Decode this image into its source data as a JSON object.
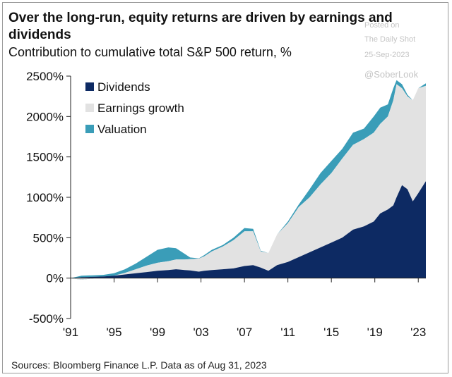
{
  "title": "Over the long-run, equity returns are driven by earnings and dividends",
  "subtitle": "Contribution to cumulative total S&P 500 return, %",
  "source": "Sources: Bloomberg  Finance L.P. Data as of Aug 31, 2023",
  "watermark": {
    "posted": "Posted on",
    "site": "The Daily Shot",
    "date": "25-Sep-2023",
    "handle": "@SoberLook"
  },
  "colors": {
    "dividends": "#0d2a63",
    "earnings": "#e2e2e2",
    "valuation": "#3a9db8",
    "axis": "#222222"
  },
  "chart_data": {
    "type": "area",
    "stacked": true,
    "x_tick_labels": [
      "'91",
      "'95",
      "'99",
      "'03",
      "'07",
      "'11",
      "'15",
      "'19",
      "'23"
    ],
    "x_tick_years": [
      1991,
      1995,
      1999,
      2003,
      2007,
      2011,
      2015,
      2019,
      2023
    ],
    "y_tick_labels": [
      "2500%",
      "2000%",
      "1500%",
      "1000%",
      "500%",
      "0%",
      "-500%"
    ],
    "y_tick_values": [
      2500,
      2000,
      1500,
      1000,
      500,
      0,
      -500
    ],
    "ylim": [
      -500,
      2500
    ],
    "xlim": [
      1991,
      2023.7
    ],
    "legend_position": "top-left",
    "x": [
      1991.0,
      1992.0,
      1993.0,
      1994.0,
      1995.0,
      1996.0,
      1997.0,
      1998.0,
      1999.0,
      2000.0,
      2000.7,
      2001.5,
      2002.0,
      2002.8,
      2003.3,
      2004.0,
      2005.0,
      2006.0,
      2007.0,
      2007.8,
      2008.5,
      2009.2,
      2010.0,
      2011.0,
      2012.0,
      2013.0,
      2014.0,
      2015.0,
      2016.0,
      2017.0,
      2018.0,
      2018.9,
      2019.5,
      2020.2,
      2020.7,
      2021.0,
      2021.5,
      2022.0,
      2022.5,
      2023.0,
      2023.7
    ],
    "series": [
      {
        "name": "Dividends",
        "values": [
          0,
          10,
          15,
          20,
          30,
          45,
          60,
          75,
          90,
          100,
          110,
          100,
          95,
          80,
          90,
          100,
          110,
          120,
          150,
          160,
          130,
          90,
          160,
          200,
          260,
          320,
          380,
          440,
          500,
          600,
          640,
          700,
          800,
          850,
          900,
          1000,
          1150,
          1100,
          950,
          1050,
          1200
        ]
      },
      {
        "name": "Earnings growth",
        "values": [
          0,
          -30,
          -20,
          -10,
          0,
          20,
          50,
          80,
          100,
          110,
          120,
          130,
          140,
          160,
          180,
          230,
          280,
          350,
          430,
          420,
          200,
          220,
          380,
          480,
          620,
          680,
          780,
          860,
          980,
          1050,
          1080,
          1100,
          1110,
          1150,
          1300,
          1400,
          1200,
          1150,
          1250,
          1300,
          1180
        ]
      },
      {
        "name": "Valuation",
        "values": [
          0,
          50,
          40,
          30,
          30,
          45,
          70,
          110,
          160,
          170,
          140,
          70,
          20,
          5,
          15,
          20,
          20,
          30,
          40,
          30,
          10,
          0,
          0,
          20,
          30,
          100,
          140,
          150,
          120,
          150,
          130,
          200,
          200,
          150,
          150,
          50,
          50,
          20,
          0,
          0,
          30
        ]
      }
    ]
  }
}
